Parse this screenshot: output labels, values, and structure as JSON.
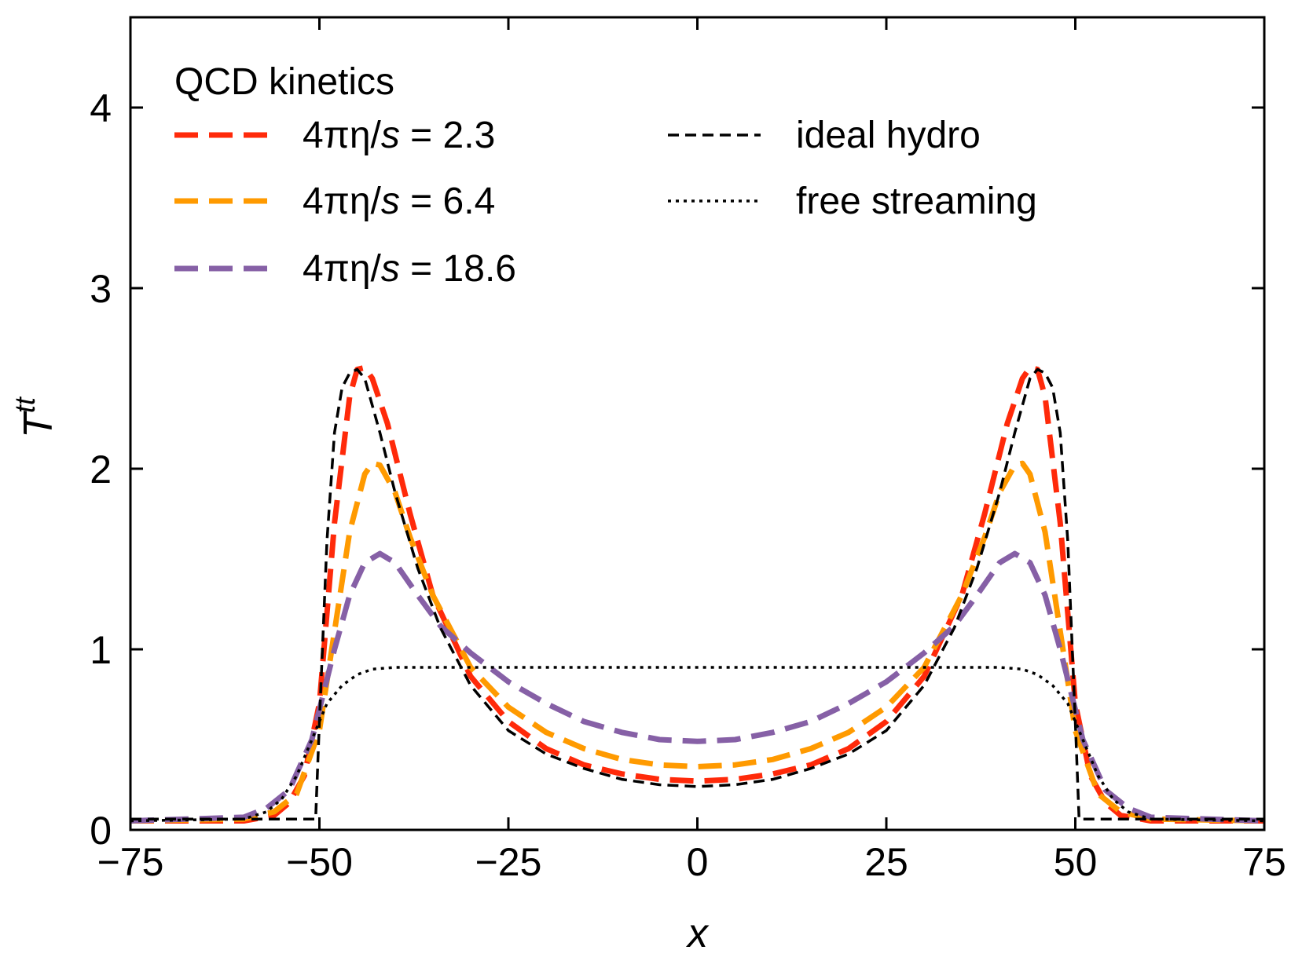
{
  "chart_data": {
    "type": "line",
    "xlabel": "x",
    "ylabel": "T",
    "ylabel_superscript": "tt",
    "xlim": [
      -75,
      75
    ],
    "ylim": [
      0,
      4.5
    ],
    "xticks": [
      -75,
      -50,
      -25,
      0,
      25,
      50,
      75
    ],
    "xtick_labels": [
      "−75",
      "−50",
      "−25",
      "0",
      "25",
      "50",
      "75"
    ],
    "yticks": [
      0,
      1,
      2,
      3,
      4
    ],
    "ytick_labels": [
      "0",
      "1",
      "2",
      "3",
      "4"
    ],
    "legend_title": "QCD kinetics",
    "legend_position": "top-left",
    "series": [
      {
        "name": "4πη/s = 2.3",
        "label_prefix": "4πη/",
        "label_italic": "s",
        "label_suffix": " = 2.3",
        "color": "#ff2a0a",
        "style": "dashed-thick",
        "x": [
          -75,
          -60,
          -56,
          -54,
          -52,
          -50,
          -48,
          -46,
          -45,
          -44,
          -43,
          -41,
          -38,
          -35,
          -30,
          -25,
          -20,
          -15,
          -10,
          -5,
          0,
          5,
          10,
          15,
          20,
          25,
          30,
          35,
          38,
          41,
          43,
          44,
          45,
          46,
          48,
          50,
          52,
          54,
          56,
          60,
          75
        ],
        "values": [
          0.05,
          0.05,
          0.08,
          0.15,
          0.3,
          0.7,
          1.7,
          2.4,
          2.55,
          2.56,
          2.5,
          2.25,
          1.75,
          1.3,
          0.85,
          0.6,
          0.45,
          0.36,
          0.31,
          0.28,
          0.27,
          0.28,
          0.31,
          0.36,
          0.45,
          0.6,
          0.85,
          1.3,
          1.75,
          2.25,
          2.5,
          2.56,
          2.55,
          2.4,
          1.7,
          0.7,
          0.3,
          0.15,
          0.08,
          0.05,
          0.05
        ]
      },
      {
        "name": "4πη/s = 6.4",
        "label_prefix": "4πη/",
        "label_italic": "s",
        "label_suffix": " = 6.4",
        "color": "#ff9a00",
        "style": "dashed-thick",
        "x": [
          -75,
          -60,
          -56,
          -53,
          -50,
          -48,
          -46,
          -44,
          -43,
          -42,
          -40,
          -38,
          -35,
          -30,
          -25,
          -20,
          -15,
          -10,
          -5,
          0,
          5,
          10,
          15,
          20,
          25,
          30,
          35,
          38,
          40,
          42,
          43,
          44,
          46,
          48,
          50,
          53,
          56,
          60,
          75
        ],
        "values": [
          0.05,
          0.06,
          0.1,
          0.2,
          0.55,
          1.1,
          1.65,
          1.97,
          2.03,
          2.02,
          1.87,
          1.62,
          1.3,
          0.9,
          0.68,
          0.54,
          0.45,
          0.39,
          0.36,
          0.35,
          0.36,
          0.39,
          0.45,
          0.54,
          0.68,
          0.9,
          1.3,
          1.62,
          1.87,
          2.02,
          2.03,
          1.97,
          1.65,
          1.1,
          0.55,
          0.2,
          0.1,
          0.06,
          0.05
        ]
      },
      {
        "name": "4πη/s = 18.6",
        "label_prefix": "4πη/",
        "label_italic": "s",
        "label_suffix": " = 18.6",
        "color": "#8660a6",
        "style": "dashed-thick",
        "x": [
          -75,
          -60,
          -57,
          -54,
          -51,
          -48,
          -46,
          -44,
          -42,
          -40,
          -37,
          -34,
          -30,
          -25,
          -20,
          -15,
          -10,
          -5,
          0,
          5,
          10,
          15,
          20,
          25,
          30,
          34,
          37,
          40,
          42,
          44,
          46,
          48,
          51,
          54,
          57,
          60,
          75
        ],
        "values": [
          0.05,
          0.07,
          0.12,
          0.22,
          0.5,
          1.0,
          1.3,
          1.48,
          1.53,
          1.48,
          1.3,
          1.13,
          0.98,
          0.82,
          0.7,
          0.6,
          0.54,
          0.5,
          0.49,
          0.5,
          0.54,
          0.6,
          0.7,
          0.82,
          0.98,
          1.13,
          1.3,
          1.48,
          1.53,
          1.48,
          1.3,
          1.0,
          0.5,
          0.22,
          0.12,
          0.07,
          0.05
        ]
      },
      {
        "name": "ideal hydro",
        "label_prefix": "ideal hydro",
        "label_italic": "",
        "label_suffix": "",
        "color": "#000000",
        "style": "dashed-thin",
        "x": [
          -75,
          -50.5,
          -50,
          -49,
          -48,
          -47,
          -46,
          -45,
          -44,
          -42,
          -40,
          -37,
          -34,
          -30,
          -25,
          -20,
          -15,
          -10,
          -5,
          0,
          5,
          10,
          15,
          20,
          25,
          30,
          34,
          37,
          40,
          42,
          44,
          45,
          46,
          47,
          48,
          49,
          50,
          50.5,
          75
        ],
        "values": [
          0.06,
          0.06,
          0.6,
          1.6,
          2.2,
          2.45,
          2.53,
          2.55,
          2.5,
          2.2,
          1.87,
          1.45,
          1.12,
          0.8,
          0.55,
          0.42,
          0.34,
          0.28,
          0.25,
          0.24,
          0.25,
          0.28,
          0.34,
          0.42,
          0.55,
          0.8,
          1.12,
          1.45,
          1.87,
          2.2,
          2.5,
          2.55,
          2.53,
          2.45,
          2.2,
          1.6,
          0.6,
          0.06,
          0.06
        ]
      },
      {
        "name": "free streaming",
        "label_prefix": "free streaming",
        "label_italic": "",
        "label_suffix": "",
        "color": "#000000",
        "style": "dotted",
        "x": [
          -75,
          -60,
          -57,
          -55,
          -53,
          -51,
          -49,
          -47,
          -45,
          -43,
          -40,
          0,
          40,
          43,
          45,
          47,
          49,
          51,
          53,
          55,
          57,
          60,
          75
        ],
        "values": [
          0.05,
          0.06,
          0.1,
          0.17,
          0.3,
          0.5,
          0.7,
          0.8,
          0.86,
          0.89,
          0.9,
          0.9,
          0.9,
          0.89,
          0.86,
          0.8,
          0.7,
          0.5,
          0.3,
          0.17,
          0.1,
          0.06,
          0.05
        ]
      }
    ]
  }
}
